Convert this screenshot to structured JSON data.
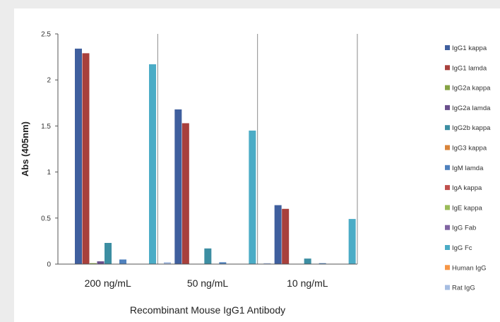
{
  "chart_data": {
    "type": "bar",
    "xlabel": "Recombinant Mouse IgG1 Antibody",
    "ylabel": "Abs (405nm)",
    "ylim": [
      0,
      2.5
    ],
    "yticks": [
      "0",
      "0.5",
      "1",
      "1.5",
      "2",
      "2.5"
    ],
    "categories": [
      "200 ng/mL",
      "50 ng/mL",
      "10 ng/mL"
    ],
    "legend_position": "right",
    "grid": "vertical category separators",
    "series": [
      {
        "name": "IgG1 kappa",
        "color": "#3f5f9e",
        "values": [
          2.34,
          1.68,
          0.64
        ]
      },
      {
        "name": "IgG1 lamda",
        "color": "#a8403c",
        "values": [
          2.29,
          1.53,
          0.6
        ]
      },
      {
        "name": "IgG2a kappa",
        "color": "#86a344",
        "values": [
          0.01,
          0.0,
          0.0
        ]
      },
      {
        "name": "IgG2a lamda",
        "color": "#6a4f8c",
        "values": [
          0.03,
          0.0,
          0.0
        ]
      },
      {
        "name": "IgG2b kappa",
        "color": "#3c8ea2",
        "values": [
          0.23,
          0.17,
          0.06
        ]
      },
      {
        "name": "IgG3 kappa",
        "color": "#d9843a",
        "values": [
          0.0,
          0.0,
          0.0
        ]
      },
      {
        "name": "IgM lamda",
        "color": "#4f81bd",
        "values": [
          0.05,
          0.02,
          0.01
        ]
      },
      {
        "name": "IgA kappa",
        "color": "#c0504d",
        "values": [
          0.0,
          0.0,
          0.0
        ]
      },
      {
        "name": "IgE kappa",
        "color": "#9bbb59",
        "values": [
          0.0,
          0.0,
          0.0
        ]
      },
      {
        "name": "IgG Fab",
        "color": "#8064a2",
        "values": [
          0.0,
          0.0,
          0.0
        ]
      },
      {
        "name": "IgG Fc",
        "color": "#4bacc6",
        "values": [
          2.17,
          1.45,
          0.49
        ]
      },
      {
        "name": "Human IgG",
        "color": "#f79646",
        "values": [
          0.0,
          0.0,
          0.0
        ]
      },
      {
        "name": "Rat IgG",
        "color": "#a6bde2",
        "values": [
          0.02,
          0.01,
          0.0
        ]
      }
    ]
  }
}
